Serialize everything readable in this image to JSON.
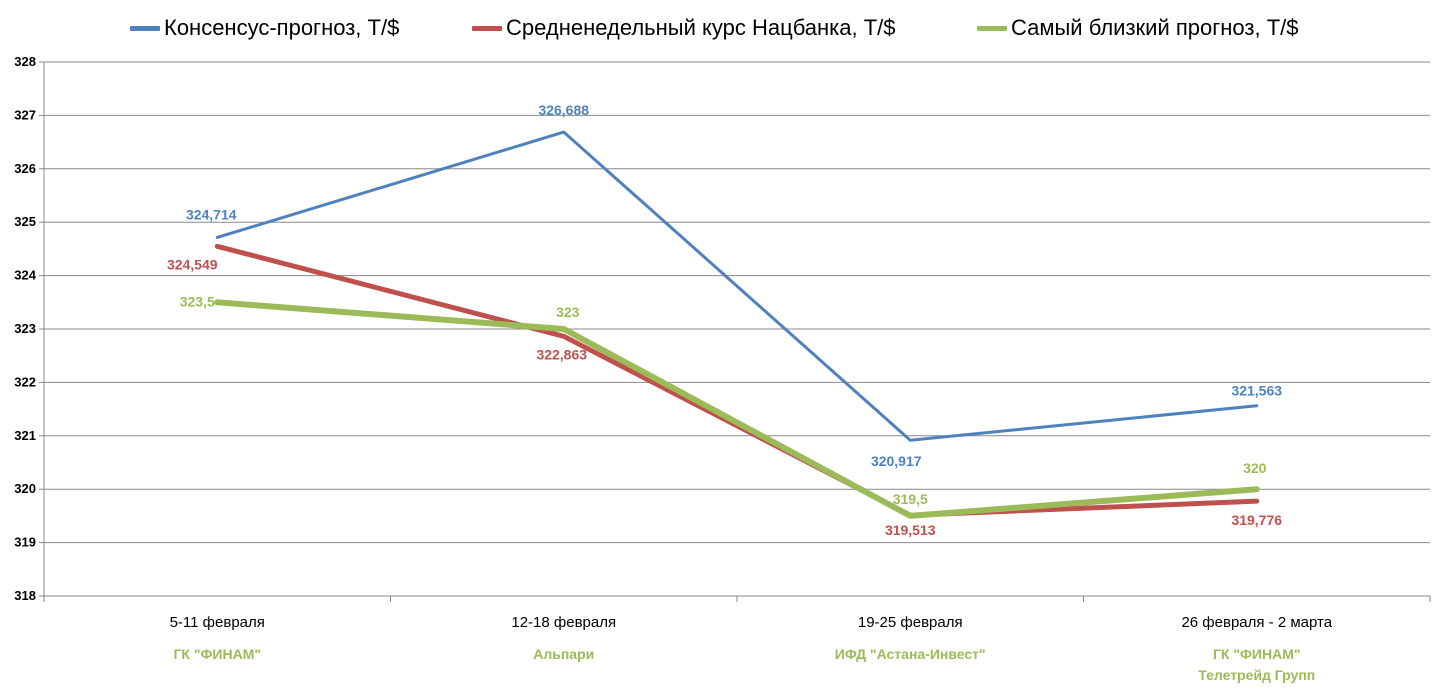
{
  "chart_data": {
    "type": "line",
    "categories": [
      "5-11 февраля",
      "12-18 февраля",
      "19-25 февраля",
      "26 февраля - 2 марта"
    ],
    "category_sublabels": [
      [
        "ГК \"ФИНАМ\""
      ],
      [
        "Альпари"
      ],
      [
        "ИФД \"Астана-Инвест\""
      ],
      [
        "ГК \"ФИНАМ\"",
        "Телетрейд Групп"
      ]
    ],
    "sublabel_color": "#9BBB59",
    "ylim": [
      318,
      328
    ],
    "yticks": [
      "318",
      "319",
      "320",
      "321",
      "322",
      "323",
      "324",
      "325",
      "326",
      "327",
      "328"
    ],
    "grid": true,
    "legend_position": "top",
    "series": [
      {
        "name": "Консенсус-прогноз, Т/$",
        "color": "#4F81BD",
        "values": [
          324.714,
          326.688,
          320.917,
          321.563
        ],
        "labels": [
          "324,714",
          "326,688",
          "320,917",
          "321,563"
        ]
      },
      {
        "name": "Средненедельный курс Нацбанка, Т/$",
        "color": "#C0504D",
        "values": [
          324.549,
          322.863,
          319.513,
          319.776
        ],
        "labels": [
          "324,549",
          "322,863",
          "319,513",
          "319,776"
        ]
      },
      {
        "name": "Самый близкий прогноз, Т/$",
        "color": "#9BBB59",
        "values": [
          323.5,
          323,
          319.5,
          320
        ],
        "labels": [
          "323,5",
          "323",
          "319,5",
          "320"
        ]
      }
    ]
  }
}
